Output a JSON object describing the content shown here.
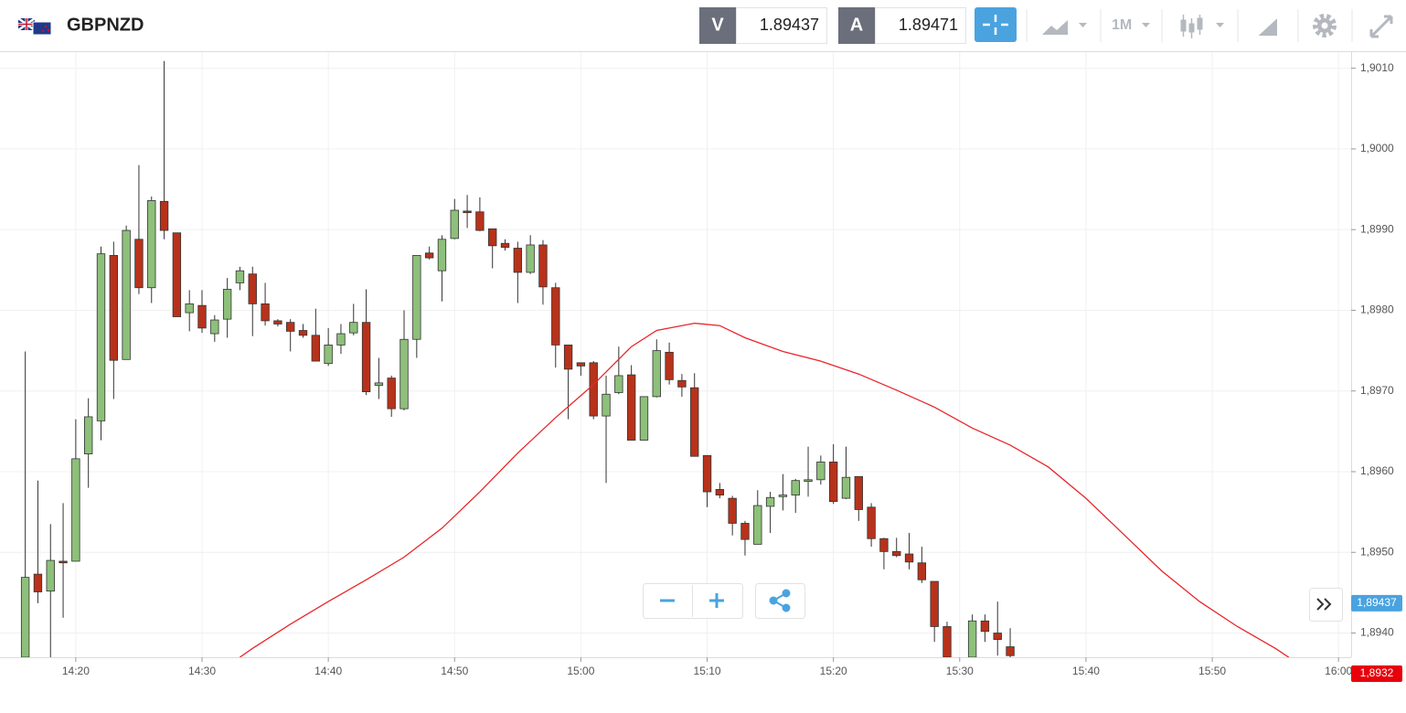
{
  "toolbar": {
    "symbol": "GBPNZD",
    "sell_label": "V",
    "sell_price": "1.89437",
    "buy_label": "A",
    "buy_price": "1.89471",
    "period": "1M"
  },
  "chart_data": {
    "type": "candlestick",
    "x": [
      "14:16",
      "14:17",
      "14:18",
      "14:19",
      "14:20",
      "14:21",
      "14:22",
      "14:23",
      "14:24",
      "14:25",
      "14:26",
      "14:27",
      "14:28",
      "14:29",
      "14:30",
      "14:31",
      "14:32",
      "14:33",
      "14:34",
      "14:35",
      "14:36",
      "14:37",
      "14:38",
      "14:39",
      "14:40",
      "14:41",
      "14:42",
      "14:43",
      "14:44",
      "14:45",
      "14:46",
      "14:47",
      "14:48",
      "14:49",
      "14:50",
      "14:51",
      "14:52",
      "14:53",
      "14:54",
      "14:55",
      "14:56",
      "14:57",
      "14:58",
      "14:59",
      "15:00",
      "15:01",
      "15:02",
      "15:03",
      "15:04",
      "15:05",
      "15:06",
      "15:07",
      "15:08",
      "15:09",
      "15:10",
      "15:11",
      "15:12",
      "15:13",
      "15:14",
      "15:15",
      "15:16",
      "15:17",
      "15:18",
      "15:19",
      "15:20",
      "15:21",
      "15:22",
      "15:23",
      "15:24",
      "15:25",
      "15:26",
      "15:27",
      "15:28",
      "15:29",
      "15:31",
      "15:32",
      "15:33",
      "15:34"
    ],
    "open": [
      1.8937,
      1.89473,
      1.89452,
      1.89489,
      1.89489,
      1.89622,
      1.89663,
      1.89868,
      1.89739,
      1.89888,
      1.89828,
      1.89935,
      1.89896,
      1.89797,
      1.89806,
      1.89771,
      1.89789,
      1.89834,
      1.89845,
      1.89808,
      1.89787,
      1.89785,
      1.89775,
      1.89769,
      1.89734,
      1.89757,
      1.89772,
      1.89785,
      1.89707,
      1.89716,
      1.89678,
      1.89764,
      1.89871,
      1.89849,
      1.89889,
      1.89923,
      1.89922,
      1.89901,
      1.89883,
      1.89877,
      1.89847,
      1.89881,
      1.89828,
      1.89757,
      1.89735,
      1.89735,
      1.89669,
      1.89698,
      1.8972,
      1.89639,
      1.89693,
      1.89748,
      1.89713,
      1.89704,
      1.8962,
      1.89578,
      1.89567,
      1.89536,
      1.8951,
      1.89557,
      1.89569,
      1.89571,
      1.89588,
      1.8959,
      1.89612,
      1.89567,
      1.89594,
      1.89556,
      1.89517,
      1.89501,
      1.89498,
      1.89487,
      1.89464,
      1.89408,
      1.8937,
      1.89415,
      1.894,
      1.89383
    ],
    "high": [
      1.89749,
      1.89589,
      1.89535,
      1.89561,
      1.89665,
      1.89691,
      1.89879,
      1.89885,
      1.89905,
      1.8998,
      1.89941,
      1.90109,
      1.89896,
      1.89825,
      1.89825,
      1.89794,
      1.8984,
      1.89854,
      1.89854,
      1.89834,
      1.89789,
      1.89789,
      1.89783,
      1.89802,
      1.89778,
      1.89783,
      1.89808,
      1.89826,
      1.89741,
      1.89719,
      1.898,
      1.89868,
      1.89879,
      1.89893,
      1.89938,
      1.89943,
      1.8994,
      1.89901,
      1.89888,
      1.89885,
      1.89893,
      1.89887,
      1.89834,
      1.89757,
      1.89735,
      1.89737,
      1.89719,
      1.89755,
      1.89732,
      1.89693,
      1.89764,
      1.8976,
      1.89721,
      1.89722,
      1.8962,
      1.89586,
      1.8957,
      1.89539,
      1.89577,
      1.89575,
      1.89597,
      1.89591,
      1.89631,
      1.8962,
      1.89634,
      1.89631,
      1.89594,
      1.89561,
      1.89518,
      1.89518,
      1.89524,
      1.89507,
      1.89464,
      1.89414,
      1.89423,
      1.89423,
      1.89439,
      1.89406
    ],
    "low": [
      1.8937,
      1.89437,
      1.8937,
      1.89419,
      1.89489,
      1.8958,
      1.89639,
      1.8969,
      1.89739,
      1.8982,
      1.89809,
      1.89888,
      1.89792,
      1.89774,
      1.89772,
      1.89761,
      1.89766,
      1.89825,
      1.89768,
      1.89781,
      1.8978,
      1.89749,
      1.89766,
      1.89737,
      1.89731,
      1.89746,
      1.89769,
      1.89695,
      1.8969,
      1.89668,
      1.89676,
      1.89741,
      1.89863,
      1.89811,
      1.89888,
      1.89902,
      1.89898,
      1.89852,
      1.89874,
      1.89809,
      1.89845,
      1.89807,
      1.89729,
      1.89665,
      1.89719,
      1.89665,
      1.89586,
      1.89696,
      1.89639,
      1.89639,
      1.89692,
      1.89708,
      1.89693,
      1.89619,
      1.89556,
      1.89567,
      1.89521,
      1.89496,
      1.8951,
      1.89524,
      1.89552,
      1.89549,
      1.89569,
      1.89584,
      1.8956,
      1.89566,
      1.89539,
      1.89507,
      1.89479,
      1.89494,
      1.89479,
      1.89462,
      1.89389,
      1.8937,
      1.8937,
      1.89389,
      1.89372,
      1.8937
    ],
    "close": [
      1.89469,
      1.89451,
      1.8949,
      1.89487,
      1.89616,
      1.89668,
      1.8987,
      1.89738,
      1.89899,
      1.89828,
      1.89936,
      1.89899,
      1.89792,
      1.89808,
      1.89778,
      1.89788,
      1.89826,
      1.89849,
      1.89808,
      1.89787,
      1.89783,
      1.89774,
      1.89769,
      1.89737,
      1.89757,
      1.89771,
      1.89785,
      1.89699,
      1.8971,
      1.89678,
      1.89764,
      1.89868,
      1.89865,
      1.89888,
      1.89924,
      1.89921,
      1.89899,
      1.8988,
      1.89878,
      1.89847,
      1.89881,
      1.89829,
      1.89757,
      1.89727,
      1.89731,
      1.89669,
      1.89696,
      1.89719,
      1.89639,
      1.89693,
      1.8975,
      1.89714,
      1.89705,
      1.89619,
      1.89575,
      1.89571,
      1.89536,
      1.89516,
      1.89558,
      1.89568,
      1.89571,
      1.89589,
      1.8959,
      1.89612,
      1.89563,
      1.89593,
      1.89553,
      1.89517,
      1.89501,
      1.89496,
      1.89488,
      1.89466,
      1.89408,
      1.8937,
      1.89415,
      1.89402,
      1.89392,
      1.89372
    ],
    "up_color": "#8dc07a",
    "down_color": "#b8321b",
    "ma_line": {
      "color": "#e8262a",
      "x": [
        "14:33",
        "14:34",
        "14:37",
        "14:40",
        "14:43",
        "14:46",
        "14:49",
        "14:52",
        "14:55",
        "14:58",
        "15:01",
        "15:04",
        "15:06",
        "15:09",
        "15:11",
        "15:13",
        "15:16",
        "15:19",
        "15:22",
        "15:25",
        "15:28",
        "15:31",
        "15:34",
        "15:37",
        "15:40",
        "15:43",
        "15:46",
        "15:49",
        "15:52",
        "15:55",
        "15:57"
      ],
      "values": [
        1.8937,
        1.89381,
        1.89411,
        1.89439,
        1.89466,
        1.89494,
        1.8953,
        1.89575,
        1.89623,
        1.89667,
        1.89708,
        1.89755,
        1.89775,
        1.89784,
        1.89781,
        1.89766,
        1.89749,
        1.89737,
        1.89721,
        1.89701,
        1.8968,
        1.89654,
        1.89633,
        1.89606,
        1.89567,
        1.89522,
        1.89477,
        1.89439,
        1.89408,
        1.89381,
        1.8936
      ]
    },
    "xlim": [
      "14:14",
      "16:01"
    ],
    "xticks": [
      "14:20",
      "14:30",
      "14:40",
      "14:50",
      "15:00",
      "15:10",
      "15:20",
      "15:30",
      "15:40",
      "15:50",
      "16:00"
    ],
    "ylim": [
      1.8937,
      1.9012
    ],
    "yticks": [
      {
        "value": 1.894,
        "label": "1,8940"
      },
      {
        "value": 1.895,
        "label": "1,8950"
      },
      {
        "value": 1.896,
        "label": "1,8960"
      },
      {
        "value": 1.897,
        "label": "1,8970"
      },
      {
        "value": 1.898,
        "label": "1,8980"
      },
      {
        "value": 1.899,
        "label": "1,8990"
      },
      {
        "value": 1.9,
        "label": "1,9000"
      },
      {
        "value": 1.901,
        "label": "1,9010"
      }
    ],
    "grid": true,
    "price_tags": [
      {
        "value": 1.89437,
        "label": "1,89437",
        "color": "#4aa3df"
      },
      {
        "value": 1.8932,
        "label": "1,8932",
        "color": "#e8000b"
      }
    ]
  }
}
